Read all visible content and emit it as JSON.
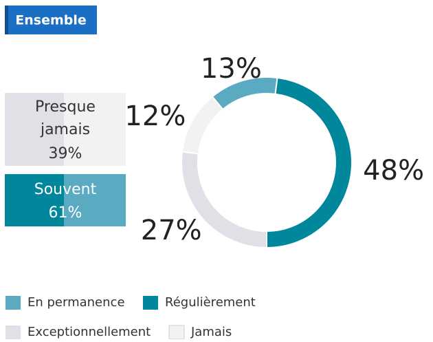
{
  "chart_data": {
    "type": "donut",
    "title": "Ensemble",
    "categories": [
      "En permanence",
      "Régulièrement",
      "Exceptionnellement",
      "Jamais"
    ],
    "values": [
      13,
      48,
      27,
      12
    ],
    "value_labels": [
      "13%",
      "48%",
      "27%",
      "12%"
    ],
    "colors": [
      "#5aaac1",
      "#00879c",
      "#e0e1e6",
      "#f2f2f3"
    ],
    "summary": [
      {
        "label": "Presque jamais",
        "value": 39,
        "value_label": "39%"
      },
      {
        "label": "Souvent",
        "value": 61,
        "value_label": "61%"
      }
    ]
  }
}
